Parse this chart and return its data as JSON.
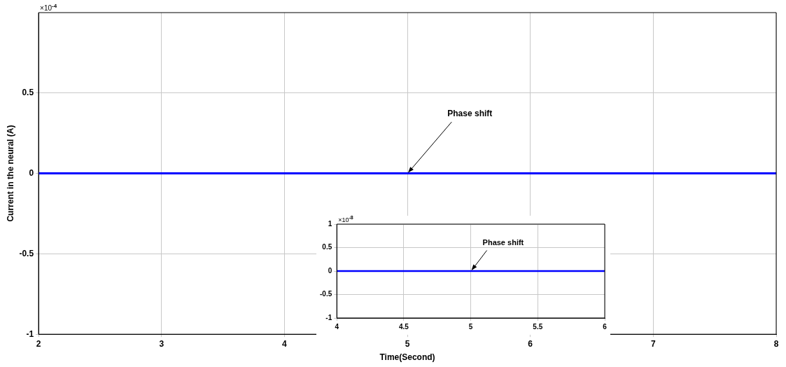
{
  "chart_data": [
    {
      "type": "line",
      "xlabel": "Time(Second)",
      "ylabel": "Current in the neural (A)",
      "x": [
        2,
        8
      ],
      "series": [
        {
          "color": "#0000ff",
          "values": [
            0,
            0
          ]
        }
      ],
      "xlim": [
        2,
        8
      ],
      "xticks": [
        2,
        3,
        4,
        5,
        6,
        7,
        8
      ],
      "ylim": [
        -1,
        1
      ],
      "yticks": [
        -1,
        -0.5,
        0,
        0.5
      ],
      "grid": true,
      "legend": false,
      "annotations": [
        {
          "text": "Phase shift",
          "x": 5,
          "y": 0
        },
        "×10$^{-4}$"
      ]
    },
    {
      "type": "line",
      "x": [
        4,
        6
      ],
      "series": [
        {
          "color": "#0000ff",
          "values": [
            0,
            0
          ]
        }
      ],
      "xlim": [
        4,
        6
      ],
      "xticks": [
        4,
        4.5,
        5,
        5.5,
        6
      ],
      "ylim": [
        -1,
        1
      ],
      "yticks": [
        -1,
        -0.5,
        0,
        0.5,
        1
      ],
      "grid": true,
      "legend": false,
      "annotations": [
        {
          "text": "Phase shift",
          "x": 5,
          "y": 0
        },
        "×10$^{-8}$"
      ]
    }
  ]
}
